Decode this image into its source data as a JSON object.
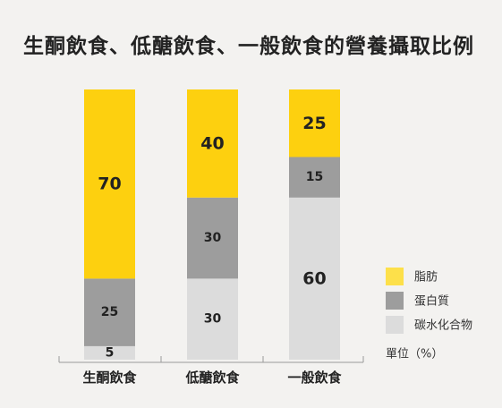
{
  "chart_data": {
    "type": "bar",
    "stacked": true,
    "title": "生酮飲食、低醣飲食、一般飲食的營養攝取比例",
    "categories": [
      "生酮飲食",
      "低醣飲食",
      "一般飲食"
    ],
    "series": [
      {
        "name": "碳水化合物",
        "color": "#dcdcdc",
        "values": [
          5,
          30,
          60
        ]
      },
      {
        "name": "蛋白質",
        "color": "#9d9d9d",
        "values": [
          25,
          30,
          15
        ]
      },
      {
        "name": "脂肪",
        "color": "#fdd00f",
        "values": [
          70,
          40,
          25
        ]
      }
    ],
    "legend_order": [
      "脂肪",
      "蛋白質",
      "碳水化合物"
    ],
    "legend_colors": [
      "#fde04a",
      "#9d9d9d",
      "#dcdcdc"
    ],
    "legend_position": "right",
    "unit_label": "單位（%）",
    "ylim": [
      0,
      100
    ],
    "grid": false
  }
}
